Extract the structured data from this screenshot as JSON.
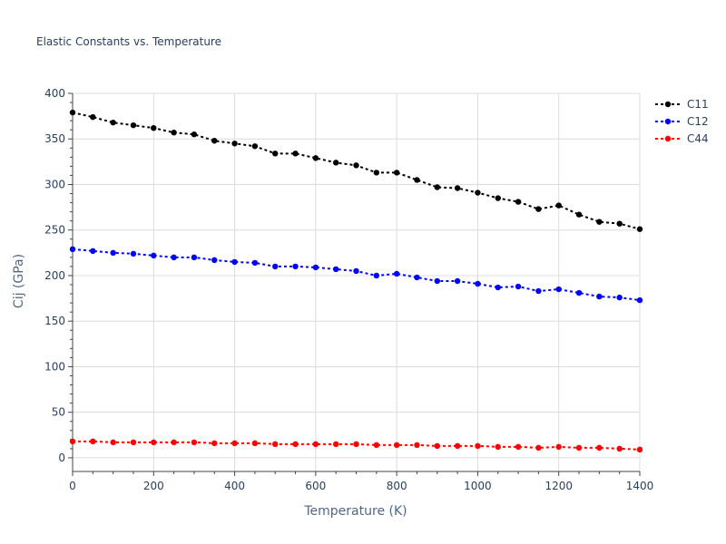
{
  "chart_data": {
    "type": "line",
    "title": "Elastic Constants vs. Temperature",
    "xlabel": "Temperature (K)",
    "ylabel": "Cij (GPa)",
    "xlim": [
      0,
      1400
    ],
    "ylim": [
      -15,
      400
    ],
    "xticks": [
      0,
      200,
      400,
      600,
      800,
      1000,
      1200,
      1400
    ],
    "yticks": [
      0,
      50,
      100,
      150,
      200,
      250,
      300,
      350,
      400
    ],
    "grid": true,
    "legend_position": "top-right",
    "x": [
      0,
      50,
      100,
      150,
      200,
      250,
      300,
      350,
      400,
      450,
      500,
      550,
      600,
      650,
      700,
      750,
      800,
      850,
      900,
      950,
      1000,
      1050,
      1100,
      1150,
      1200,
      1250,
      1300,
      1350,
      1400
    ],
    "series": [
      {
        "name": "C11",
        "color": "#000000",
        "values": [
          379,
          374,
          368,
          365,
          362,
          357,
          355,
          348,
          345,
          342,
          334,
          334,
          329,
          324,
          321,
          313,
          313,
          305,
          297,
          296,
          291,
          285,
          281,
          273,
          277,
          267,
          259,
          257,
          251
        ]
      },
      {
        "name": "C12",
        "color": "#0000ff",
        "values": [
          229,
          227,
          225,
          224,
          222,
          220,
          220,
          217,
          215,
          214,
          210,
          210,
          209,
          207,
          205,
          200,
          202,
          198,
          194,
          194,
          191,
          187,
          188,
          183,
          185,
          181,
          177,
          176,
          173
        ]
      },
      {
        "name": "C44",
        "color": "#ff0000",
        "values": [
          18,
          18,
          17,
          17,
          17,
          17,
          17,
          16,
          16,
          16,
          15,
          15,
          15,
          15,
          15,
          14,
          14,
          14,
          13,
          13,
          13,
          12,
          12,
          11,
          12,
          11,
          11,
          10,
          9
        ]
      }
    ]
  }
}
